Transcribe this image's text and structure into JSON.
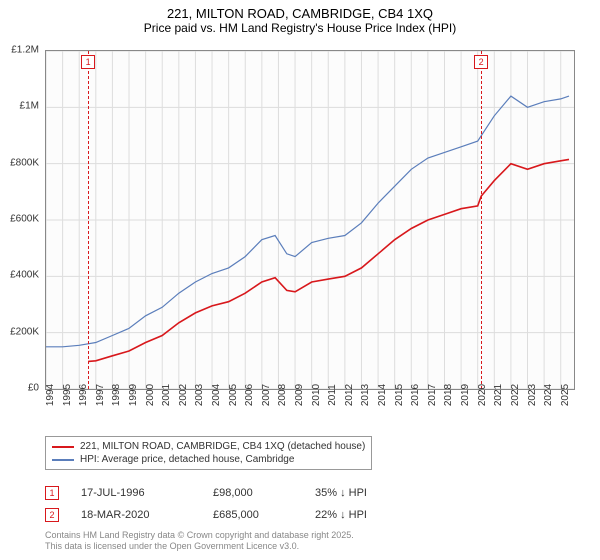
{
  "title": "221, MILTON ROAD, CAMBRIDGE, CB4 1XQ",
  "subtitle": "Price paid vs. HM Land Registry's House Price Index (HPI)",
  "chart": {
    "type": "line",
    "background_color": "#fcfcfc",
    "border_color": "#888888",
    "grid_color": "#dddddd",
    "x_range": [
      1994,
      2025.8
    ],
    "y_range": [
      0,
      1200000
    ],
    "y_ticks": [
      {
        "v": 0,
        "label": "£0"
      },
      {
        "v": 200000,
        "label": "£200K"
      },
      {
        "v": 400000,
        "label": "£400K"
      },
      {
        "v": 600000,
        "label": "£600K"
      },
      {
        "v": 800000,
        "label": "£800K"
      },
      {
        "v": 1000000,
        "label": "£1M"
      },
      {
        "v": 1200000,
        "label": "£1.2M"
      }
    ],
    "x_ticks": [
      1994,
      1995,
      1996,
      1997,
      1998,
      1999,
      2000,
      2001,
      2002,
      2003,
      2004,
      2005,
      2006,
      2007,
      2008,
      2009,
      2010,
      2011,
      2012,
      2013,
      2014,
      2015,
      2016,
      2017,
      2018,
      2019,
      2020,
      2021,
      2022,
      2023,
      2024,
      2025
    ],
    "series": [
      {
        "name": "221, MILTON ROAD, CAMBRIDGE, CB4 1XQ (detached house)",
        "color": "#d8181c",
        "width": 1.6,
        "points": [
          [
            1996.54,
            98000
          ],
          [
            1997,
            100000
          ],
          [
            1998,
            118000
          ],
          [
            1999,
            135000
          ],
          [
            2000,
            165000
          ],
          [
            2001,
            190000
          ],
          [
            2002,
            235000
          ],
          [
            2003,
            270000
          ],
          [
            2004,
            295000
          ],
          [
            2005,
            310000
          ],
          [
            2006,
            340000
          ],
          [
            2007,
            380000
          ],
          [
            2007.8,
            395000
          ],
          [
            2008.5,
            350000
          ],
          [
            2009,
            345000
          ],
          [
            2010,
            380000
          ],
          [
            2011,
            390000
          ],
          [
            2012,
            400000
          ],
          [
            2013,
            430000
          ],
          [
            2014,
            480000
          ],
          [
            2015,
            530000
          ],
          [
            2016,
            570000
          ],
          [
            2017,
            600000
          ],
          [
            2018,
            620000
          ],
          [
            2019,
            640000
          ],
          [
            2020,
            650000
          ],
          [
            2020.21,
            685000
          ],
          [
            2021,
            740000
          ],
          [
            2022,
            800000
          ],
          [
            2023,
            780000
          ],
          [
            2024,
            800000
          ],
          [
            2025,
            810000
          ],
          [
            2025.5,
            815000
          ]
        ]
      },
      {
        "name": "HPI: Average price, detached house, Cambridge",
        "color": "#5b7ebb",
        "width": 1.2,
        "points": [
          [
            1994,
            150000
          ],
          [
            1995,
            150000
          ],
          [
            1996,
            155000
          ],
          [
            1997,
            165000
          ],
          [
            1998,
            190000
          ],
          [
            1999,
            215000
          ],
          [
            2000,
            260000
          ],
          [
            2001,
            290000
          ],
          [
            2002,
            340000
          ],
          [
            2003,
            380000
          ],
          [
            2004,
            410000
          ],
          [
            2005,
            430000
          ],
          [
            2006,
            470000
          ],
          [
            2007,
            530000
          ],
          [
            2007.8,
            545000
          ],
          [
            2008.5,
            480000
          ],
          [
            2009,
            470000
          ],
          [
            2010,
            520000
          ],
          [
            2011,
            535000
          ],
          [
            2012,
            545000
          ],
          [
            2013,
            590000
          ],
          [
            2014,
            660000
          ],
          [
            2015,
            720000
          ],
          [
            2016,
            780000
          ],
          [
            2017,
            820000
          ],
          [
            2018,
            840000
          ],
          [
            2019,
            860000
          ],
          [
            2020,
            880000
          ],
          [
            2021,
            970000
          ],
          [
            2022,
            1040000
          ],
          [
            2023,
            1000000
          ],
          [
            2024,
            1020000
          ],
          [
            2025,
            1030000
          ],
          [
            2025.5,
            1040000
          ]
        ]
      }
    ],
    "sale_markers": [
      {
        "n": "1",
        "x": 1996.54,
        "color": "#d8181c"
      },
      {
        "n": "2",
        "x": 2020.21,
        "color": "#d8181c"
      }
    ]
  },
  "legend": {
    "items": [
      {
        "color": "#d8181c",
        "label": "221, MILTON ROAD, CAMBRIDGE, CB4 1XQ (detached house)"
      },
      {
        "color": "#5b7ebb",
        "label": "HPI: Average price, detached house, Cambridge"
      }
    ]
  },
  "sales": [
    {
      "n": "1",
      "color": "#d8181c",
      "date": "17-JUL-1996",
      "price": "£98,000",
      "diff": "35% ↓ HPI"
    },
    {
      "n": "2",
      "color": "#d8181c",
      "date": "18-MAR-2020",
      "price": "£685,000",
      "diff": "22% ↓ HPI"
    }
  ],
  "footer": {
    "line1": "Contains HM Land Registry data © Crown copyright and database right 2025.",
    "line2": "This data is licensed under the Open Government Licence v3.0."
  }
}
